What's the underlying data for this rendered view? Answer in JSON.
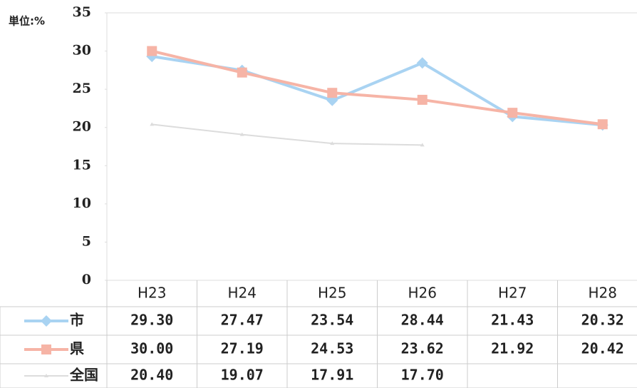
{
  "chart_data": {
    "type": "line",
    "y_axis_label": "単位:%",
    "categories": [
      "H23",
      "H24",
      "H25",
      "H26",
      "H27",
      "H28"
    ],
    "ylim": [
      0,
      35
    ],
    "yticks": [
      0,
      5,
      10,
      15,
      20,
      25,
      30,
      35
    ],
    "series": [
      {
        "name": "市",
        "color": "#a9d3f2",
        "marker": "diamond",
        "values": [
          29.3,
          27.47,
          23.54,
          28.44,
          21.43,
          20.32
        ],
        "value_labels": [
          "29.30",
          "27.47",
          "23.54",
          "28.44",
          "21.43",
          "20.32"
        ]
      },
      {
        "name": "県",
        "color": "#f6b4a6",
        "marker": "square",
        "values": [
          30.0,
          27.19,
          24.53,
          23.62,
          21.92,
          20.42
        ],
        "value_labels": [
          "30.00",
          "27.19",
          "24.53",
          "23.62",
          "21.92",
          "20.42"
        ]
      },
      {
        "name": "全国",
        "color": "#dcdcdc",
        "marker": "triangle",
        "values": [
          20.4,
          19.07,
          17.91,
          17.7,
          null,
          null
        ],
        "value_labels": [
          "20.40",
          "19.07",
          "17.91",
          "17.70",
          null,
          null
        ]
      }
    ]
  }
}
